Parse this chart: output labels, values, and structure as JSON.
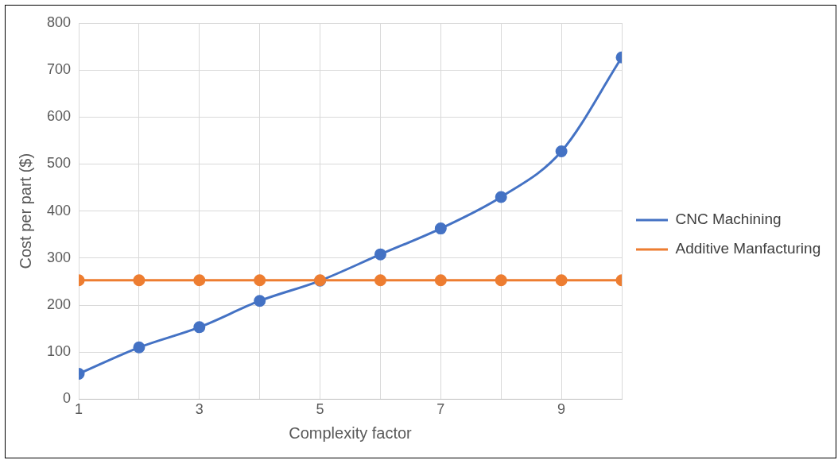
{
  "chart_data": {
    "type": "line",
    "xlabel": "Complexity factor",
    "ylabel": "Cost per part ($)",
    "x": [
      1,
      2,
      3,
      4,
      5,
      6,
      7,
      8,
      9,
      10
    ],
    "series": [
      {
        "name": "CNC Machining",
        "color": "#4472c4",
        "values": [
          54,
          110,
          153,
          209,
          252,
          308,
          363,
          430,
          527,
          727
        ]
      },
      {
        "name": "Additive Manfacturing",
        "color": "#ed7d31",
        "values": [
          253,
          253,
          253,
          253,
          253,
          253,
          253,
          253,
          253,
          253
        ]
      }
    ],
    "xlim": [
      1,
      10
    ],
    "xticks": [
      1,
      {
        "value": 2,
        "label": null
      },
      3,
      {
        "value": 4,
        "label": null
      },
      5,
      {
        "value": 6,
        "label": null
      },
      7,
      {
        "value": 8,
        "label": null
      },
      9,
      {
        "value": 10,
        "label": null
      }
    ],
    "ylim": [
      0,
      800
    ],
    "yticks": [
      0,
      100,
      200,
      300,
      400,
      500,
      600,
      700,
      800
    ],
    "grid": true,
    "legend": "right",
    "marker": "circle",
    "line_style": "solid"
  }
}
